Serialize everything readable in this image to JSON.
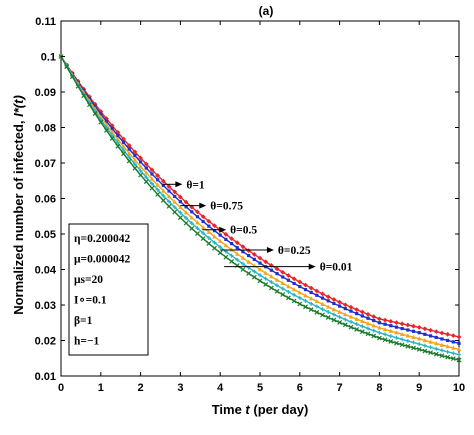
{
  "chart_data": {
    "type": "line",
    "title": "(a)",
    "xlabel_main": "Time ",
    "xlabel_var": "t",
    "xlabel_tail": " (per day)",
    "ylabel_main": "Normalized number of infected, ",
    "ylabel_var": "I*(t)",
    "xlim": [
      0,
      10
    ],
    "ylim": [
      0.01,
      0.11
    ],
    "x_ticks": [
      "0",
      "1",
      "2",
      "3",
      "4",
      "5",
      "6",
      "7",
      "8",
      "9",
      "10"
    ],
    "y_ticks": [
      "0.01",
      "0.02",
      "0.03",
      "0.04",
      "0.05",
      "0.06",
      "0.07",
      "0.08",
      "0.09",
      "0.1",
      "0.11"
    ],
    "x": [
      0,
      1,
      2,
      3,
      4,
      5,
      6,
      7,
      8,
      9,
      10
    ],
    "series": [
      {
        "name": "θ=1",
        "color": "#e8262a",
        "values": [
          0.1,
          0.0845,
          0.0714,
          0.0604,
          0.0511,
          0.0432,
          0.0365,
          0.0308,
          0.0261,
          0.0237,
          0.021
        ]
      },
      {
        "name": "θ=0.75",
        "color": "#1f2ecc",
        "values": [
          0.1,
          0.0838,
          0.0703,
          0.0591,
          0.0497,
          0.0418,
          0.0352,
          0.0297,
          0.025,
          0.0222,
          0.0192
        ]
      },
      {
        "name": "θ=0.5",
        "color": "#f2a51a",
        "values": [
          0.1,
          0.083,
          0.069,
          0.0575,
          0.048,
          0.04,
          0.0335,
          0.028,
          0.0236,
          0.0205,
          0.0175
        ]
      },
      {
        "name": "θ=0.25",
        "color": "#28b4c8",
        "values": [
          0.1,
          0.0822,
          0.0678,
          0.056,
          0.0463,
          0.0384,
          0.032,
          0.0266,
          0.0222,
          0.019,
          0.016
        ]
      },
      {
        "name": "θ=0.01",
        "color": "#1a7a2a",
        "values": [
          0.1,
          0.0815,
          0.0666,
          0.0546,
          0.0447,
          0.0368,
          0.0303,
          0.0251,
          0.0207,
          0.0175,
          0.0145
        ]
      }
    ],
    "annotations": [
      {
        "label": "θ=1",
        "arrow_from": [
          3.05,
          0.064
        ],
        "arrow_to": [
          2.55,
          0.064
        ]
      },
      {
        "label": "θ=0.75",
        "arrow_from": [
          3.65,
          0.058
        ],
        "arrow_to": [
          3.0,
          0.058
        ]
      },
      {
        "label": "θ=0.5",
        "arrow_from": [
          4.15,
          0.0512
        ],
        "arrow_to": [
          3.55,
          0.0512
        ]
      },
      {
        "label": "θ=0.25",
        "arrow_from": [
          5.35,
          0.0455
        ],
        "arrow_to": [
          4.0,
          0.0455
        ]
      },
      {
        "label": "θ=0.01",
        "arrow_from": [
          6.4,
          0.0408
        ],
        "arrow_to": [
          4.1,
          0.0408
        ]
      }
    ],
    "params": [
      "η=0.200042",
      "μ=0.000042",
      "μs=20",
      "I∘=0.1",
      "β=1",
      "h=−1"
    ],
    "grid": false
  }
}
